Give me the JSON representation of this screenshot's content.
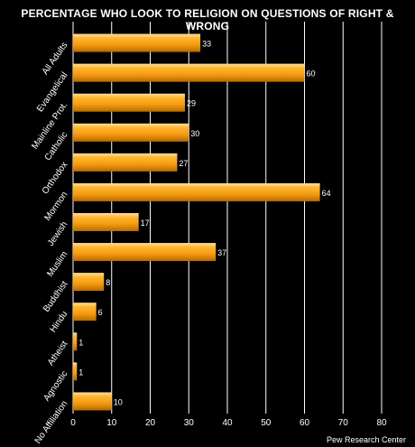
{
  "chart_data": {
    "type": "bar",
    "orientation": "horizontal",
    "title": "PERCENTAGE WHO LOOK TO RELIGION ON QUESTIONS OF RIGHT & WRONG",
    "categories": [
      "All Adults",
      "Evangelical",
      "Mainline Prot.",
      "Catholic",
      "Orthodox",
      "Mormon",
      "Jewish",
      "Muslim",
      "Buddhist",
      "Hindu",
      "Atheist",
      "Agnostic",
      "No Affiliation"
    ],
    "values": [
      33,
      60,
      29,
      30,
      27,
      64,
      17,
      37,
      8,
      6,
      1,
      1,
      10
    ],
    "xlim": [
      0,
      80
    ],
    "xticks": [
      0,
      10,
      20,
      30,
      40,
      50,
      60,
      70,
      80
    ],
    "xlabel": "",
    "ylabel": "",
    "grid": "vertical",
    "colors": {
      "background": "#000000",
      "bar": "#f5a623",
      "bar_highlight": "#ffd580",
      "bar_shadow": "#c87400",
      "grid": "#ffffff",
      "text": "#ffffff"
    },
    "source": "Pew Research Center"
  }
}
